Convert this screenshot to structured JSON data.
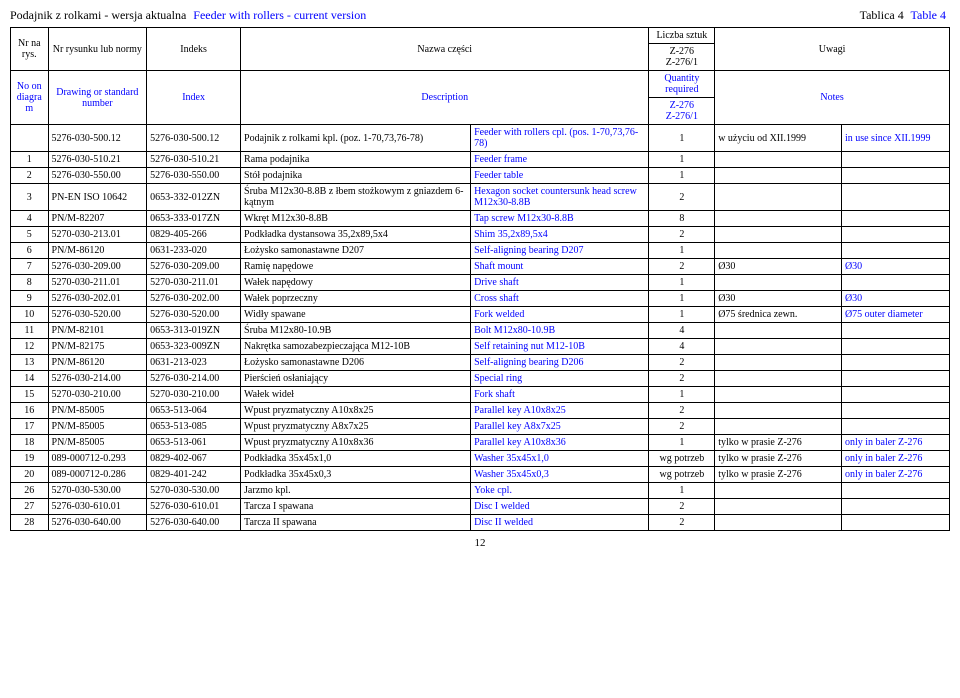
{
  "title": {
    "pl": "Podajnik z rolkami - wersja aktualna",
    "en": "Feeder with rollers - current version",
    "table_pl": "Tablica 4",
    "table_en": "Table 4"
  },
  "header": {
    "nr_pl": "Nr na rys.",
    "nr_en": "No on diagram",
    "draw_pl": "Nr rysunku lub normy",
    "draw_en": "Drawing or standard number",
    "idx_pl": "Indeks",
    "idx_en": "Index",
    "name_pl": "Nazwa części",
    "name_en": "Description",
    "qty_top_pl": "Liczba sztuk",
    "qty_bot_pl": "Z-276\nZ-276/1",
    "qty_top_en": "Quantity required",
    "qty_bot_en": "Z-276\nZ-276/1",
    "notes_pl": "Uwagi",
    "notes_en": "Notes"
  },
  "rows": [
    {
      "nr": "",
      "draw": "5276-030-500.12",
      "idx": "5276-030-500.12",
      "name_pl": "Podajnik z rolkami kpl. (poz. 1-70,73,76-78)",
      "name_en": "Feeder with rollers cpl. (pos. 1-70,73,76-78)",
      "qty": "1",
      "note_pl": "w użyciu od XII.1999",
      "note_en": "in use since XII.1999"
    },
    {
      "nr": "1",
      "draw": "5276-030-510.21",
      "idx": "5276-030-510.21",
      "name_pl": "Rama podajnika",
      "name_en": "Feeder frame",
      "qty": "1",
      "note_pl": "",
      "note_en": ""
    },
    {
      "nr": "2",
      "draw": "5276-030-550.00",
      "idx": "5276-030-550.00",
      "name_pl": "Stół podajnika",
      "name_en": "Feeder table",
      "qty": "1",
      "note_pl": "",
      "note_en": ""
    },
    {
      "nr": "3",
      "draw": "PN-EN ISO 10642",
      "idx": "0653-332-012ZN",
      "name_pl": "Śruba M12x30-8.8B z łbem stożkowym z gniazdem 6-kątnym",
      "name_en": "Hexagon socket countersunk head screw M12x30-8.8B",
      "qty": "2",
      "note_pl": "",
      "note_en": ""
    },
    {
      "nr": "4",
      "draw": "PN/M-82207",
      "idx": "0653-333-017ZN",
      "name_pl": "Wkręt M12x30-8.8B",
      "name_en": "Tap screw M12x30-8.8B",
      "qty": "8",
      "note_pl": "",
      "note_en": ""
    },
    {
      "nr": "5",
      "draw": "5270-030-213.01",
      "idx": "0829-405-266",
      "name_pl": "Podkładka dystansowa 35,2x89,5x4",
      "name_en": "Shim 35,2x89,5x4",
      "qty": "2",
      "note_pl": "",
      "note_en": ""
    },
    {
      "nr": "6",
      "draw": "PN/M-86120",
      "idx": "0631-233-020",
      "name_pl": "Łożysko samonastawne D207",
      "name_en": "Self-aligning bearing D207",
      "qty": "1",
      "note_pl": "",
      "note_en": ""
    },
    {
      "nr": "7",
      "draw": "5276-030-209.00",
      "idx": "5276-030-209.00",
      "name_pl": "Ramię napędowe",
      "name_en": "Shaft mount",
      "qty": "2",
      "note_pl": "Ø30",
      "note_en": "Ø30"
    },
    {
      "nr": "8",
      "draw": "5270-030-211.01",
      "idx": "5270-030-211.01",
      "name_pl": "Wałek napędowy",
      "name_en": "Drive shaft",
      "qty": "1",
      "note_pl": "",
      "note_en": ""
    },
    {
      "nr": "9",
      "draw": "5276-030-202.01",
      "idx": "5276-030-202.00",
      "name_pl": "Wałek poprzeczny",
      "name_en": "Cross shaft",
      "qty": "1",
      "note_pl": "Ø30",
      "note_en": "Ø30"
    },
    {
      "nr": "10",
      "draw": "5276-030-520.00",
      "idx": "5276-030-520.00",
      "name_pl": "Widły spawane",
      "name_en": "Fork welded",
      "qty": "1",
      "note_pl": "Ø75 średnica zewn.",
      "note_en": "Ø75 outer diameter"
    },
    {
      "nr": "11",
      "draw": "PN/M-82101",
      "idx": "0653-313-019ZN",
      "name_pl": "Śruba M12x80-10.9B",
      "name_en": "Bolt M12x80-10.9B",
      "qty": "4",
      "note_pl": "",
      "note_en": ""
    },
    {
      "nr": "12",
      "draw": "PN/M-82175",
      "idx": "0653-323-009ZN",
      "name_pl": "Nakrętka samozabezpieczająca M12-10B",
      "name_en": "Self retaining nut M12-10B",
      "qty": "4",
      "note_pl": "",
      "note_en": ""
    },
    {
      "nr": "13",
      "draw": "PN/M-86120",
      "idx": "0631-213-023",
      "name_pl": "Łożysko samonastawne D206",
      "name_en": "Self-aligning bearing D206",
      "qty": "2",
      "note_pl": "",
      "note_en": ""
    },
    {
      "nr": "14",
      "draw": "5276-030-214.00",
      "idx": "5276-030-214.00",
      "name_pl": "Pierścień osłaniający",
      "name_en": "Special ring",
      "qty": "2",
      "note_pl": "",
      "note_en": ""
    },
    {
      "nr": "15",
      "draw": "5270-030-210.00",
      "idx": "5270-030-210.00",
      "name_pl": "Wałek wideł",
      "name_en": "Fork shaft",
      "qty": "1",
      "note_pl": "",
      "note_en": ""
    },
    {
      "nr": "16",
      "draw": "PN/M-85005",
      "idx": "0653-513-064",
      "name_pl": "Wpust pryzmatyczny A10x8x25",
      "name_en": "Parallel key A10x8x25",
      "qty": "2",
      "note_pl": "",
      "note_en": ""
    },
    {
      "nr": "17",
      "draw": "PN/M-85005",
      "idx": "0653-513-085",
      "name_pl": "Wpust pryzmatyczny A8x7x25",
      "name_en": "Parallel key A8x7x25",
      "qty": "2",
      "note_pl": "",
      "note_en": ""
    },
    {
      "nr": "18",
      "draw": "PN/M-85005",
      "idx": "0653-513-061",
      "name_pl": "Wpust pryzmatyczny A10x8x36",
      "name_en": "Parallel key A10x8x36",
      "qty": "1",
      "note_pl": "tylko w prasie Z-276",
      "note_en": "only in baler Z-276"
    },
    {
      "nr": "19",
      "draw": "089-000712-0.293",
      "idx": "0829-402-067",
      "name_pl": "Podkładka 35x45x1,0",
      "name_en": "Washer 35x45x1,0",
      "qty": "wg potrzeb",
      "note_pl": "tylko w prasie Z-276",
      "note_en": "only in baler Z-276"
    },
    {
      "nr": "20",
      "draw": "089-000712-0.286",
      "idx": "0829-401-242",
      "name_pl": "Podkładka 35x45x0,3",
      "name_en": "Washer 35x45x0,3",
      "qty": "wg potrzeb",
      "note_pl": "tylko w prasie Z-276",
      "note_en": "only in baler Z-276"
    },
    {
      "nr": "26",
      "draw": "5270-030-530.00",
      "idx": "5270-030-530.00",
      "name_pl": "Jarzmo kpl.",
      "name_en": "Yoke cpl.",
      "qty": "1",
      "note_pl": "",
      "note_en": ""
    },
    {
      "nr": "27",
      "draw": "5276-030-610.01",
      "idx": "5276-030-610.01",
      "name_pl": "Tarcza I spawana",
      "name_en": "Disc I welded",
      "qty": "2",
      "note_pl": "",
      "note_en": ""
    },
    {
      "nr": "28",
      "draw": "5276-030-640.00",
      "idx": "5276-030-640.00",
      "name_pl": "Tarcza II spawana",
      "name_en": "Disc II welded",
      "qty": "2",
      "note_pl": "",
      "note_en": ""
    }
  ],
  "page_num": "12"
}
